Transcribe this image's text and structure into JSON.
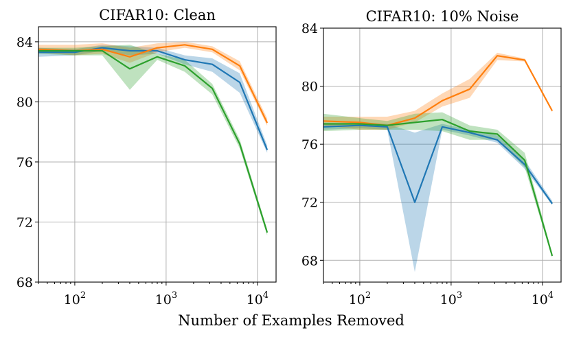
{
  "figure": {
    "xlabel": "Number of Examples Removed"
  },
  "colors": {
    "blue": "#1f77b4",
    "orange": "#ff7f0e",
    "green": "#2ca02c"
  },
  "chart_data": [
    {
      "type": "line",
      "title": "CIFAR10: Clean",
      "xscale": "log",
      "xlim": [
        40,
        16000
      ],
      "ylim": [
        68,
        85
      ],
      "yticks": [
        68,
        72,
        76,
        80,
        84
      ],
      "xticks": [
        {
          "value": 100,
          "base": "10",
          "exp": "2"
        },
        {
          "value": 1000,
          "base": "10",
          "exp": "3"
        },
        {
          "value": 10000,
          "base": "10",
          "exp": "4"
        }
      ],
      "grid": true,
      "x": [
        40,
        100,
        200,
        400,
        800,
        1600,
        3200,
        6400,
        12800
      ],
      "series": [
        {
          "color": "#1f77b4",
          "values": [
            83.3,
            83.3,
            83.6,
            83.4,
            83.4,
            82.8,
            82.5,
            81.3,
            76.8
          ],
          "lower": [
            83.0,
            83.1,
            83.4,
            83.1,
            83.2,
            82.5,
            82.0,
            80.6,
            76.6
          ],
          "upper": [
            83.6,
            83.5,
            83.8,
            83.7,
            83.6,
            83.1,
            82.9,
            81.9,
            77.1
          ]
        },
        {
          "color": "#ff7f0e",
          "values": [
            83.5,
            83.4,
            83.5,
            83.0,
            83.6,
            83.8,
            83.5,
            82.4,
            78.6
          ],
          "lower": [
            83.3,
            83.1,
            83.2,
            82.6,
            83.3,
            83.6,
            83.3,
            82.1,
            78.4
          ],
          "upper": [
            83.8,
            83.8,
            83.9,
            83.6,
            83.9,
            84.0,
            83.7,
            82.7,
            78.9
          ]
        },
        {
          "color": "#2ca02c",
          "values": [
            83.4,
            83.4,
            83.4,
            82.2,
            83.0,
            82.4,
            80.9,
            77.2,
            71.3
          ],
          "lower": [
            83.2,
            83.1,
            83.1,
            80.8,
            82.8,
            82.0,
            80.5,
            76.9,
            71.1
          ],
          "upper": [
            83.6,
            83.6,
            83.7,
            83.8,
            83.2,
            82.8,
            81.2,
            77.5,
            71.5
          ]
        }
      ]
    },
    {
      "type": "line",
      "title": "CIFAR10: 10% Noise",
      "xscale": "log",
      "xlim": [
        40,
        16000
      ],
      "ylim": [
        66.5,
        84
      ],
      "yticks": [
        68,
        72,
        76,
        80,
        84
      ],
      "xticks": [
        {
          "value": 100,
          "base": "10",
          "exp": "2"
        },
        {
          "value": 1000,
          "base": "10",
          "exp": "3"
        },
        {
          "value": 10000,
          "base": "10",
          "exp": "4"
        }
      ],
      "grid": true,
      "x": [
        40,
        100,
        200,
        400,
        800,
        1600,
        3200,
        6400,
        12800
      ],
      "series": [
        {
          "color": "#1f77b4",
          "values": [
            77.2,
            77.3,
            77.2,
            72.0,
            77.2,
            76.8,
            76.3,
            74.6,
            71.9
          ],
          "lower": [
            77.0,
            77.1,
            77.0,
            67.2,
            77.0,
            76.6,
            76.1,
            74.3,
            71.8
          ],
          "upper": [
            77.4,
            77.5,
            77.4,
            76.8,
            77.4,
            77.0,
            76.6,
            74.9,
            72.1
          ]
        },
        {
          "color": "#ff7f0e",
          "values": [
            77.6,
            77.5,
            77.3,
            77.8,
            79.0,
            79.8,
            82.1,
            81.8,
            78.3
          ],
          "lower": [
            77.3,
            77.0,
            77.0,
            77.5,
            78.6,
            79.2,
            81.8,
            81.7,
            78.2
          ],
          "upper": [
            77.9,
            77.9,
            77.9,
            78.3,
            79.5,
            80.5,
            82.3,
            81.9,
            78.4
          ]
        },
        {
          "color": "#2ca02c",
          "values": [
            77.4,
            77.4,
            77.3,
            77.5,
            77.7,
            76.9,
            76.7,
            74.9,
            68.3
          ],
          "lower": [
            76.9,
            77.0,
            77.0,
            77.0,
            76.9,
            76.3,
            76.3,
            74.4,
            68.2
          ],
          "upper": [
            78.1,
            77.8,
            77.6,
            78.1,
            78.2,
            77.3,
            77.0,
            75.4,
            68.5
          ]
        }
      ]
    }
  ]
}
